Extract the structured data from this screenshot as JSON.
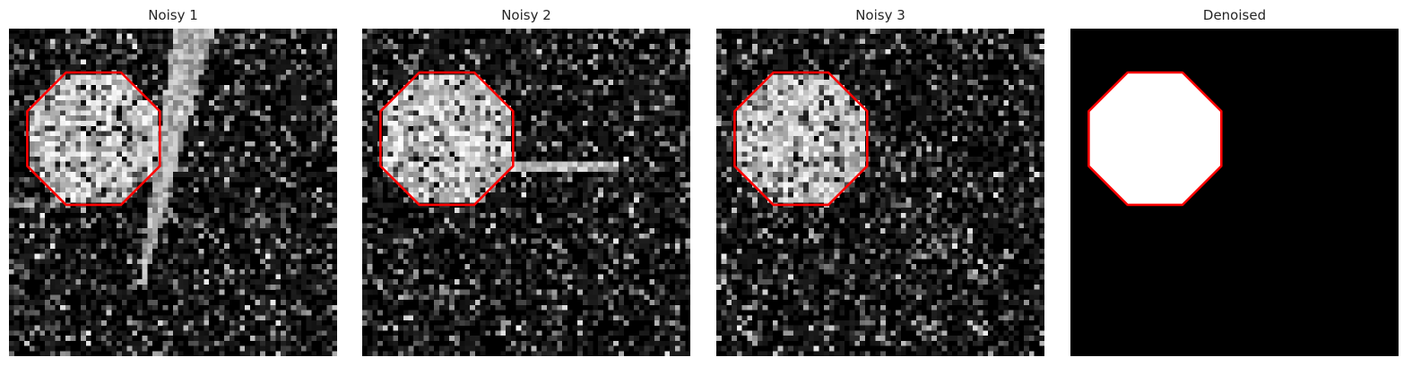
{
  "panels": [
    {
      "title": "Noisy 1",
      "kind": "noisy",
      "seed": 11,
      "streak": "wedge"
    },
    {
      "title": "Noisy 2",
      "kind": "noisy",
      "seed": 23,
      "streak": "line"
    },
    {
      "title": "Noisy 3",
      "kind": "noisy",
      "seed": 37,
      "streak": "none"
    },
    {
      "title": "Denoised",
      "kind": "clean"
    }
  ],
  "colors": {
    "background": "#000000",
    "foreground": "#ffffff",
    "contour": "#ff0000"
  },
  "image_grid": 64
}
